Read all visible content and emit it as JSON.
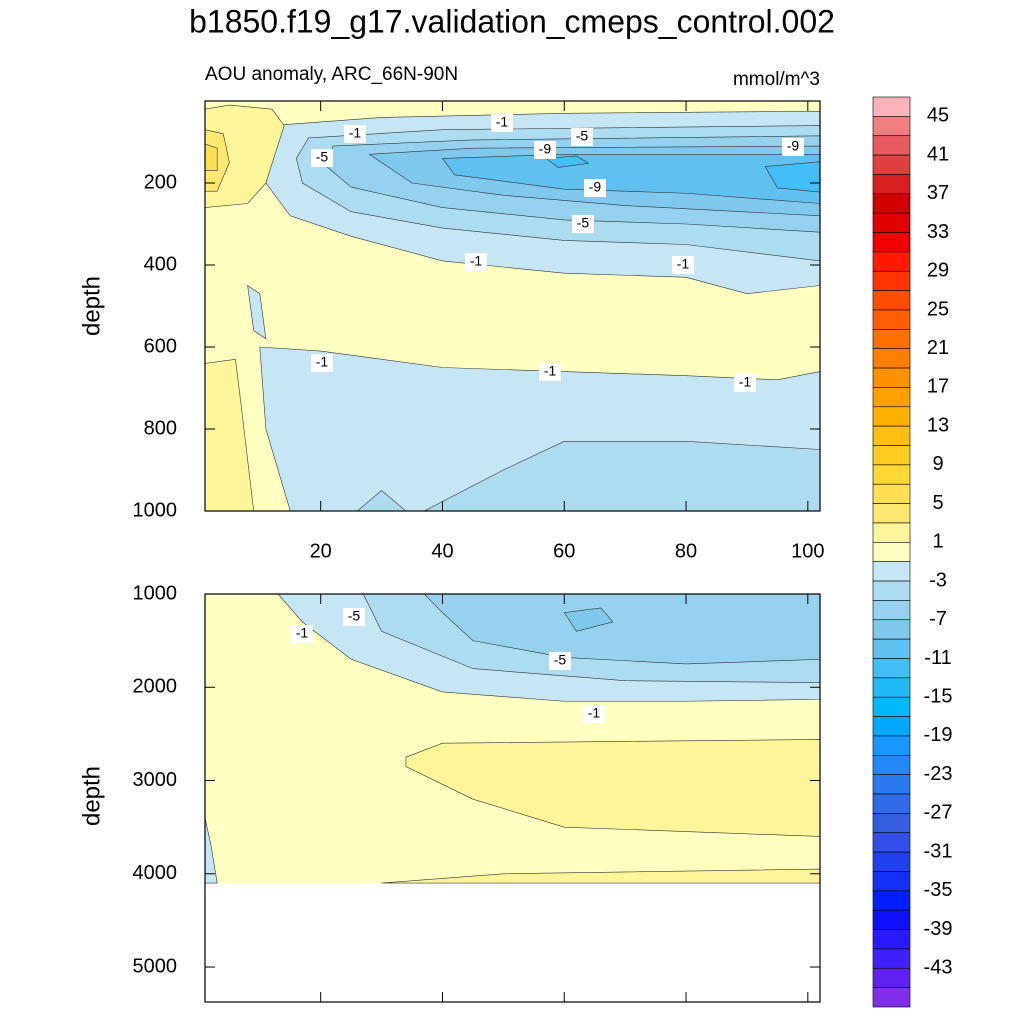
{
  "chart_data": {
    "type": "contour",
    "title": "b1850.f19_g17.validation_cmeps_control.002",
    "subtitle": "AOU anomaly, ARC_66N-90N",
    "units": "mmol/m^3",
    "colorbar": {
      "levels": [
        45,
        43,
        41,
        39,
        37,
        35,
        33,
        31,
        29,
        27,
        25,
        23,
        21,
        19,
        17,
        15,
        13,
        11,
        9,
        7,
        5,
        3,
        1,
        -1,
        -3,
        -5,
        -7,
        -9,
        -11,
        -13,
        -15,
        -17,
        -19,
        -21,
        -23,
        -25,
        -27,
        -29,
        -31,
        -33,
        -35,
        -37,
        -39,
        -41,
        -43,
        -45
      ],
      "colors": [
        "#fbb4b9",
        "#f08080",
        "#e65c5c",
        "#e04040",
        "#d82020",
        "#d00000",
        "#e00000",
        "#f00000",
        "#ff1a00",
        "#ff3300",
        "#ff4d00",
        "#ff5f00",
        "#ff7000",
        "#ff8000",
        "#ff9000",
        "#ffa000",
        "#ffb000",
        "#ffbf10",
        "#ffcc20",
        "#ffd835",
        "#ffe050",
        "#ffe870",
        "#fff59a",
        "#ffffc0",
        "#c4e6f5",
        "#acdcf2",
        "#96d2ef",
        "#80c8ec",
        "#60c0f0",
        "#40bef5",
        "#20bbf8",
        "#00b8ff",
        "#00a8ff",
        "#1898ff",
        "#2288f8",
        "#2a7af0",
        "#306ce8",
        "#3460e0",
        "#3050e8",
        "#2040f0",
        "#1030f8",
        "#0020ff",
        "#1010ff",
        "#2a1aff",
        "#4020ff",
        "#6020f0",
        "#8030e8"
      ],
      "ticks": [
        45,
        41,
        37,
        33,
        29,
        25,
        21,
        17,
        13,
        9,
        5,
        1,
        -3,
        -7,
        -11,
        -15,
        -19,
        -23,
        -27,
        -31,
        -35,
        -39,
        -43
      ]
    },
    "panels": [
      {
        "ylabel": "depth",
        "xlim": [
          1,
          102
        ],
        "xticks": [
          20,
          40,
          60,
          80,
          100
        ],
        "show_xtick_labels": true,
        "ylim": [
          0,
          1000
        ],
        "yticks": [
          200,
          400,
          600,
          800,
          1000
        ],
        "contour_labels": [
          -1,
          -1,
          -1,
          -1,
          -1,
          -1,
          -1,
          -5,
          -5,
          -5,
          -9,
          -9,
          -9
        ]
      },
      {
        "ylabel": "depth",
        "xlim": [
          1,
          102
        ],
        "xticks": [
          20,
          40,
          60,
          80,
          100
        ],
        "show_xtick_labels": false,
        "ylim": [
          1000,
          5375
        ],
        "yticks": [
          1000,
          2000,
          3000,
          4000,
          5000
        ],
        "contour_labels": [
          -1,
          -1,
          -5,
          -5
        ]
      }
    ]
  }
}
